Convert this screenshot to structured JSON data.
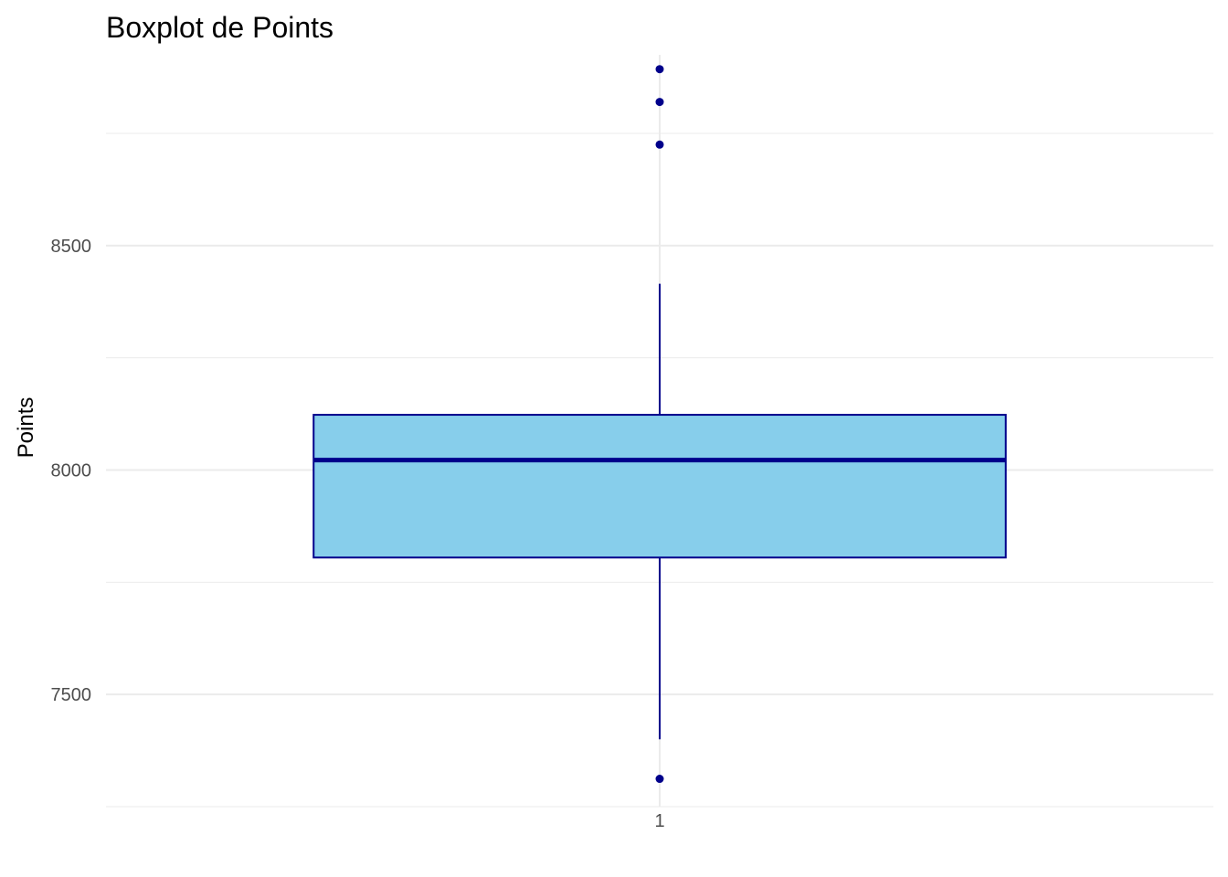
{
  "chart_data": {
    "type": "boxplot",
    "title": "Boxplot de Points",
    "xlabel": "",
    "ylabel": "Points",
    "categories": [
      "1"
    ],
    "ylim": [
      7250,
      8925
    ],
    "y_ticks": [
      7500,
      8000,
      8500
    ],
    "y_minor_ticks": [
      7250,
      7750,
      8250,
      8750
    ],
    "grid": true,
    "boxes": [
      {
        "category": "1",
        "whisker_low": 7400,
        "q1": 7805,
        "median": 8022,
        "q3": 8123,
        "whisker_high": 8415,
        "outliers": [
          7312,
          8725,
          8820,
          8893
        ]
      }
    ],
    "colors": {
      "box_fill": "#87ceeb",
      "box_line": "#00008b",
      "outlier": "#00008b",
      "grid": "#ebebeb",
      "tick_text": "#4d4d4d"
    }
  }
}
